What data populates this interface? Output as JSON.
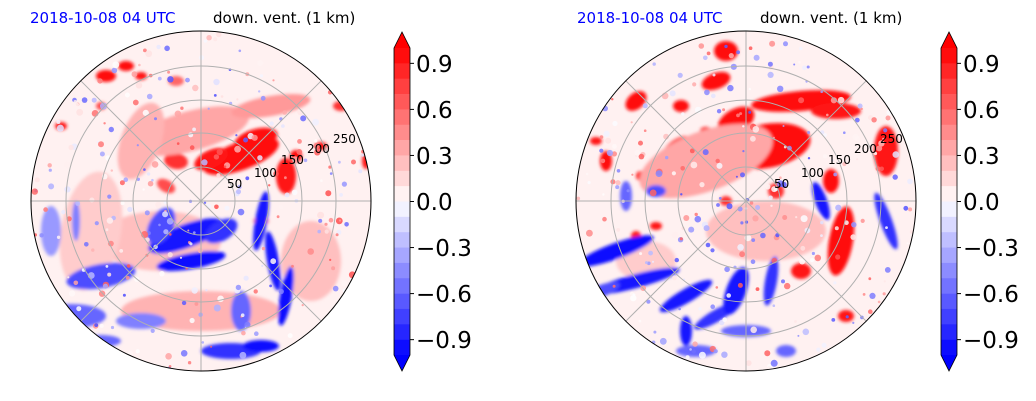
{
  "panels": [
    {
      "title_date": "2018-10-08 04 UTC",
      "title_variable": "down. vent. (1 km)",
      "radial_labels": [
        "50",
        "100",
        "150",
        "200",
        "250"
      ],
      "colorbar_ticks": [
        "0.9",
        "0.6",
        "0.3",
        "0.0",
        "−0.3",
        "−0.6",
        "−0.9"
      ]
    },
    {
      "title_date": "2018-10-08 04 UTC",
      "title_variable": "down. vent. (1 km)",
      "radial_labels": [
        "50",
        "100",
        "150",
        "200",
        "250"
      ],
      "colorbar_ticks": [
        "0.9",
        "0.6",
        "0.3",
        "0.0",
        "−0.3",
        "−0.6",
        "−0.9"
      ]
    }
  ],
  "chart_data": [
    {
      "type": "heatmap",
      "projection": "polar",
      "title": "2018-10-08 04 UTC down. vent. (1 km)",
      "radial_ticks": [
        50,
        100,
        150,
        200,
        250
      ],
      "angular_grid_deg": [
        0,
        45,
        90,
        135,
        180,
        225,
        270,
        315
      ],
      "colormap": "bwr",
      "colorbar_range": [
        -1.0,
        1.0
      ],
      "colorbar_ticks": [
        0.9,
        0.6,
        0.3,
        0.0,
        -0.3,
        -0.6,
        -0.9
      ],
      "colorbar_extend": "both",
      "colors": {
        "negative": "#0000ff",
        "zero": "#ffffff",
        "positive": "#ff0000"
      }
    },
    {
      "type": "heatmap",
      "projection": "polar",
      "title": "2018-10-08 04 UTC down. vent. (1 km)",
      "radial_ticks": [
        50,
        100,
        150,
        200,
        250
      ],
      "angular_grid_deg": [
        0,
        45,
        90,
        135,
        180,
        225,
        270,
        315
      ],
      "colormap": "bwr",
      "colorbar_range": [
        -1.0,
        1.0
      ],
      "colorbar_ticks": [
        0.9,
        0.6,
        0.3,
        0.0,
        -0.3,
        -0.6,
        -0.9
      ],
      "colorbar_extend": "both",
      "colors": {
        "negative": "#0000ff",
        "zero": "#ffffff",
        "positive": "#ff0000"
      }
    }
  ]
}
